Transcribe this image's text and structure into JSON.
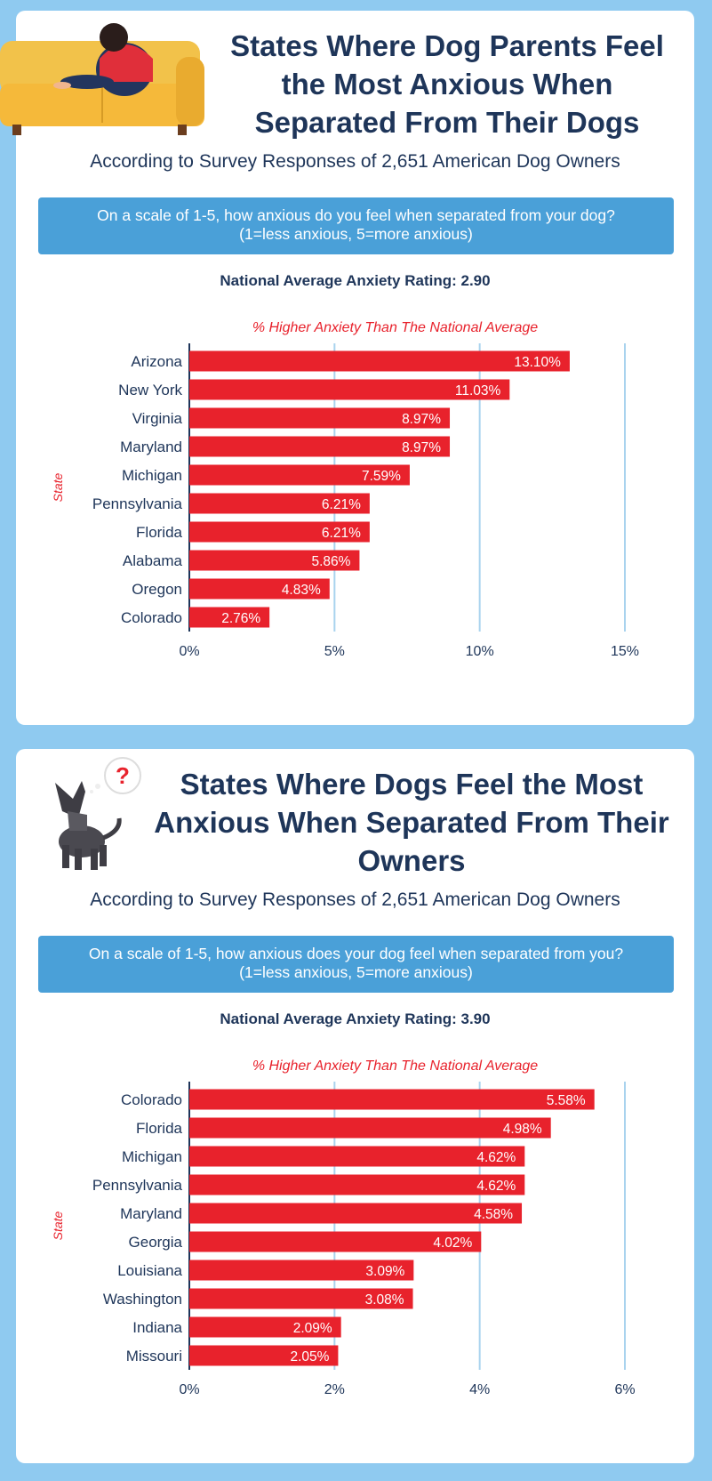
{
  "panels": [
    {
      "title": "States Where Dog Parents Feel the Most Anxious When Separated From Their Dogs",
      "subtitle": "According to Survey Responses of 2,651 American Dog Owners",
      "question_line1": "On a scale of 1-5, how anxious do you feel when separated from your dog?",
      "question_line2": "(1=less anxious, 5=more anxious)",
      "average_label": "National Average Anxiety Rating: 2.90"
    },
    {
      "title": "States Where Dogs Feel the Most Anxious When Separated From Their Owners",
      "subtitle": "According to Survey Responses of 2,651 American Dog Owners",
      "question_line1": "On a scale of 1-5, how anxious does your dog feel when separated from you?",
      "question_line2": "(1=less anxious, 5=more anxious)",
      "average_label": "National Average Anxiety Rating: 3.90"
    }
  ],
  "icons": {
    "panel1": "person-on-sofa-illustration",
    "panel2": "dog-with-question-mark-illustration"
  },
  "colors": {
    "bar": "#e8222c",
    "title": "#1e3559",
    "question_box": "#4aa0d8",
    "background": "#8fcaf0",
    "gridline": "#a9d3ee"
  },
  "chart_data": [
    {
      "type": "bar",
      "orientation": "horizontal",
      "title": "% Higher Anxiety Than The National Average",
      "ylabel": "State",
      "xlabel": "",
      "categories": [
        "Arizona",
        "New York",
        "Virginia",
        "Maryland",
        "Michigan",
        "Pennsylvania",
        "Florida",
        "Alabama",
        "Oregon",
        "Colorado"
      ],
      "values": [
        13.1,
        11.03,
        8.97,
        8.97,
        7.59,
        6.21,
        6.21,
        5.86,
        4.83,
        2.76
      ],
      "value_labels": [
        "13.10%",
        "11.03%",
        "8.97%",
        "8.97%",
        "7.59%",
        "6.21%",
        "6.21%",
        "5.86%",
        "4.83%",
        "2.76%"
      ],
      "xlim": [
        0,
        15
      ],
      "ticks": [
        0,
        5,
        10,
        15
      ],
      "tick_labels": [
        "0%",
        "5%",
        "10%",
        "15%"
      ],
      "grid": true
    },
    {
      "type": "bar",
      "orientation": "horizontal",
      "title": "% Higher Anxiety Than The National Average",
      "ylabel": "State",
      "xlabel": "",
      "categories": [
        "Colorado",
        "Florida",
        "Michigan",
        "Pennsylvania",
        "Maryland",
        "Georgia",
        "Louisiana",
        "Washington",
        "Indiana",
        "Missouri"
      ],
      "values": [
        5.58,
        4.98,
        4.62,
        4.62,
        4.58,
        4.02,
        3.09,
        3.08,
        2.09,
        2.05
      ],
      "value_labels": [
        "5.58%",
        "4.98%",
        "4.62%",
        "4.62%",
        "4.58%",
        "4.02%",
        "3.09%",
        "3.08%",
        "2.09%",
        "2.05%"
      ],
      "xlim": [
        0,
        6
      ],
      "ticks": [
        0,
        2,
        4,
        6
      ],
      "tick_labels": [
        "0%",
        "2%",
        "4%",
        "6%"
      ],
      "grid": true
    }
  ]
}
